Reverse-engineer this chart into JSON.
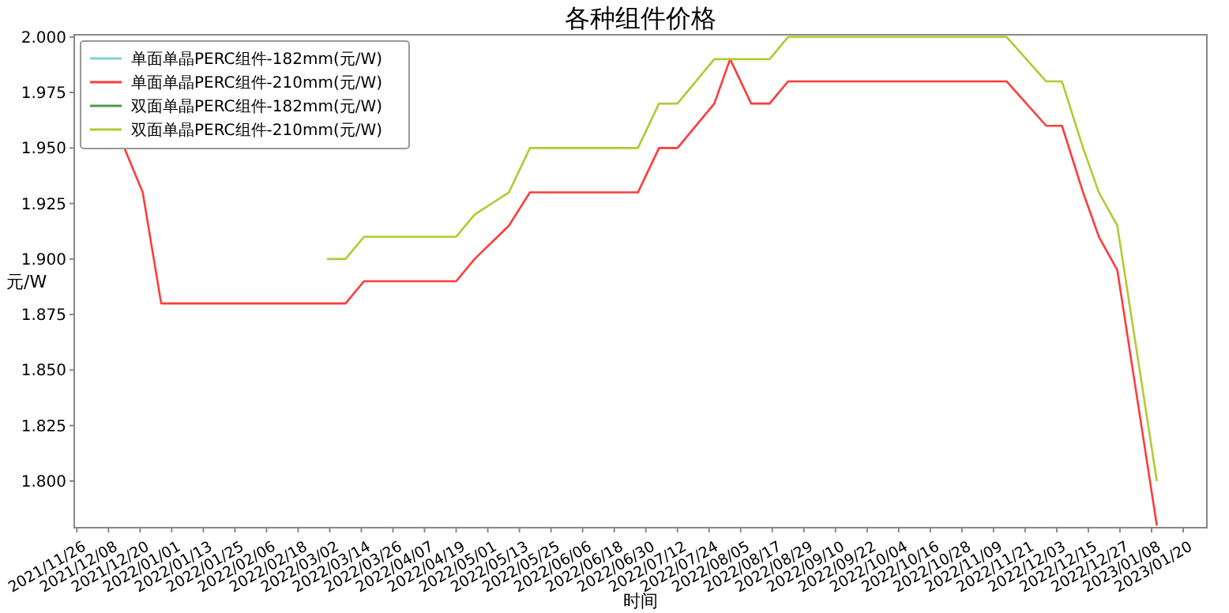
{
  "chart_data": {
    "type": "line",
    "title": "各种组件价格",
    "xlabel": "时间",
    "ylabel": "元/W",
    "legend": "top left",
    "grid": false,
    "xlim": [
      "2021-11-25",
      "2023-01-29"
    ],
    "xticks": [
      {
        "value": "2021-11-26",
        "label": "2021/11/26"
      },
      {
        "value": "2021-12-08",
        "label": "2021/12/08"
      },
      {
        "value": "2021-12-20",
        "label": "2021/12/20"
      },
      {
        "value": "2022-01-01",
        "label": "2022/01/01"
      },
      {
        "value": "2022-01-13",
        "label": "2022/01/13"
      },
      {
        "value": "2022-01-25",
        "label": "2022/01/25"
      },
      {
        "value": "2022-02-06",
        "label": "2022/02/06"
      },
      {
        "value": "2022-02-18",
        "label": "2022/02/18"
      },
      {
        "value": "2022-03-02",
        "label": "2022/03/02"
      },
      {
        "value": "2022-03-14",
        "label": "2022/03/14"
      },
      {
        "value": "2022-03-26",
        "label": "2022/03/26"
      },
      {
        "value": "2022-04-07",
        "label": "2022/04/07"
      },
      {
        "value": "2022-04-19",
        "label": "2022/04/19"
      },
      {
        "value": "2022-05-01",
        "label": "2022/05/01"
      },
      {
        "value": "2022-05-13",
        "label": "2022/05/13"
      },
      {
        "value": "2022-05-25",
        "label": "2022/05/25"
      },
      {
        "value": "2022-06-06",
        "label": "2022/06/06"
      },
      {
        "value": "2022-06-18",
        "label": "2022/06/18"
      },
      {
        "value": "2022-06-30",
        "label": "2022/06/30"
      },
      {
        "value": "2022-07-12",
        "label": "2022/07/12"
      },
      {
        "value": "2022-07-24",
        "label": "2022/07/24"
      },
      {
        "value": "2022-08-05",
        "label": "2022/08/05"
      },
      {
        "value": "2022-08-17",
        "label": "2022/08/17"
      },
      {
        "value": "2022-08-29",
        "label": "2022/08/29"
      },
      {
        "value": "2022-09-10",
        "label": "2022/09/10"
      },
      {
        "value": "2022-09-22",
        "label": "2022/09/22"
      },
      {
        "value": "2022-10-04",
        "label": "2022/10/04"
      },
      {
        "value": "2022-10-16",
        "label": "2022/10/16"
      },
      {
        "value": "2022-10-28",
        "label": "2022/10/28"
      },
      {
        "value": "2022-11-09",
        "label": "2022/11/09"
      },
      {
        "value": "2022-11-21",
        "label": "2022/11/21"
      },
      {
        "value": "2022-12-03",
        "label": "2022/12/03"
      },
      {
        "value": "2022-12-15",
        "label": "2022/12/15"
      },
      {
        "value": "2022-12-27",
        "label": "2022/12/27"
      },
      {
        "value": "2023-01-08",
        "label": "2023/01/08"
      },
      {
        "value": "2023-01-20",
        "label": "2023/01/20"
      }
    ],
    "ylim": [
      1.779,
      2.001
    ],
    "yticks": [
      {
        "value": 1.8,
        "label": "1.800"
      },
      {
        "value": 1.825,
        "label": "1.825"
      },
      {
        "value": 1.85,
        "label": "1.850"
      },
      {
        "value": 1.875,
        "label": "1.875"
      },
      {
        "value": 1.9,
        "label": "1.900"
      },
      {
        "value": 1.925,
        "label": "1.925"
      },
      {
        "value": 1.95,
        "label": "1.950"
      },
      {
        "value": 1.975,
        "label": "1.975"
      },
      {
        "value": 2.0,
        "label": "2.000"
      }
    ],
    "series": [
      {
        "name": "单面单晶PERC组件-182mm(元/W)",
        "color": "#7fd3d3"
      },
      {
        "name": "单面单晶PERC组件-210mm(元/W)",
        "color": "#ff3b3b",
        "x": [
          "2021-12-14",
          "2021-12-21",
          "2021-12-28",
          "2022-03-08",
          "2022-03-15",
          "2022-04-19",
          "2022-04-26",
          "2022-05-09",
          "2022-05-17",
          "2022-06-27",
          "2022-07-05",
          "2022-07-12",
          "2022-07-26",
          "2022-08-01",
          "2022-08-09",
          "2022-08-16",
          "2022-08-23",
          "2022-11-14",
          "2022-11-29",
          "2022-12-05",
          "2022-12-13",
          "2022-12-19",
          "2022-12-26",
          "2023-01-10"
        ],
        "values": [
          1.95,
          1.93,
          1.88,
          1.88,
          1.89,
          1.89,
          1.9,
          1.915,
          1.93,
          1.93,
          1.95,
          1.95,
          1.97,
          1.99,
          1.97,
          1.97,
          1.98,
          1.98,
          1.96,
          1.96,
          1.93,
          1.91,
          1.895,
          1.78
        ]
      },
      {
        "name": "双面单晶PERC组件-182mm(元/W)",
        "color": "#4e9a4e"
      },
      {
        "name": "双面单晶PERC组件-210mm(元/W)",
        "color": "#b5c832",
        "x": [
          "2022-03-01",
          "2022-03-08",
          "2022-03-15",
          "2022-04-19",
          "2022-04-26",
          "2022-05-09",
          "2022-05-17",
          "2022-06-27",
          "2022-07-05",
          "2022-07-12",
          "2022-07-26",
          "2022-08-16",
          "2022-08-23",
          "2022-11-14",
          "2022-11-29",
          "2022-12-05",
          "2022-12-13",
          "2022-12-19",
          "2022-12-26",
          "2023-01-10"
        ],
        "values": [
          1.9,
          1.9,
          1.91,
          1.91,
          1.92,
          1.93,
          1.95,
          1.95,
          1.97,
          1.97,
          1.99,
          1.99,
          2.0,
          2.0,
          1.98,
          1.98,
          1.95,
          1.93,
          1.915,
          1.8
        ]
      }
    ]
  }
}
